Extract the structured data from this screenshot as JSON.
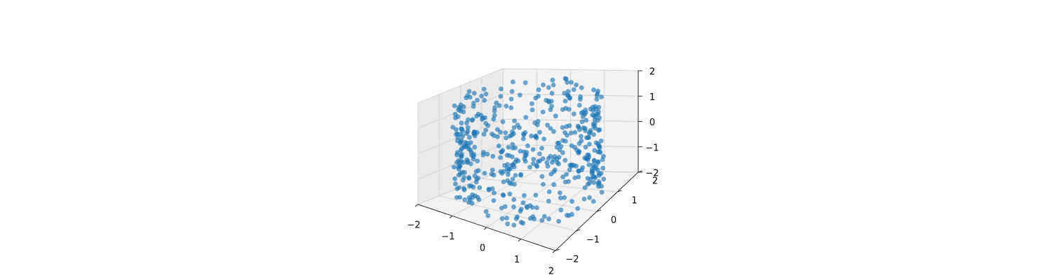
{
  "chart_data": {
    "type": "scatter",
    "projection": "3d",
    "title": "",
    "xlabel": "",
    "ylabel": "",
    "zlabel": "",
    "xlim": [
      -2,
      2
    ],
    "ylim": [
      -2,
      2
    ],
    "zlim": [
      -2,
      2
    ],
    "xticks": [
      "−2",
      "−1",
      "0",
      "1",
      "2"
    ],
    "yticks": [
      "−2",
      "−1",
      "0",
      "1",
      "2"
    ],
    "zticks": [
      "−2",
      "−1",
      "0",
      "1",
      "2"
    ],
    "grid": true,
    "marker_color": "#1f77b4",
    "point_count_estimate": 500,
    "distribution": "approximately uniform points on a cylindrical shell of radius ~1.8 around the z axis, z from about -1.8 to 1.8"
  }
}
